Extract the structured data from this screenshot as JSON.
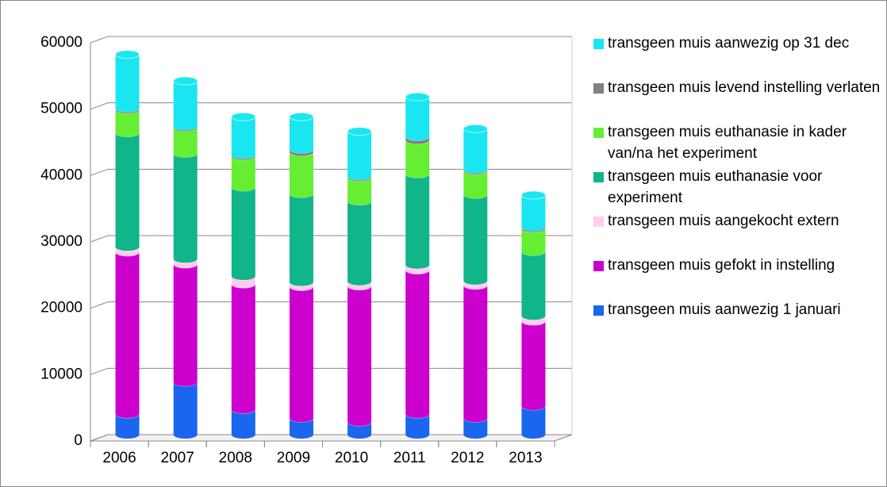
{
  "chart_data": {
    "type": "bar",
    "stacked": true,
    "categories": [
      "2006",
      "2007",
      "2008",
      "2009",
      "2010",
      "2011",
      "2012",
      "2013"
    ],
    "series": [
      {
        "name": "transgeen muis aanwezig 1 januari",
        "color": "#1a66ee",
        "values": [
          3100,
          7900,
          3800,
          2500,
          1900,
          3100,
          2500,
          4300
        ]
      },
      {
        "name": "transgeen muis gefokt in instelling",
        "color": "#cc00cc",
        "values": [
          24400,
          17800,
          18900,
          19800,
          20500,
          21700,
          20000,
          12800
        ]
      },
      {
        "name": "transgeen muis aangekocht extern",
        "color": "#ffccee",
        "values": [
          800,
          800,
          1200,
          700,
          700,
          800,
          700,
          800
        ]
      },
      {
        "name": "transgeen muis euthanasie voor experiment",
        "color": "#10b58a",
        "values": [
          17200,
          15900,
          13400,
          13300,
          12100,
          13700,
          13000,
          9700
        ]
      },
      {
        "name": "transgeen muis euthanasie in kader van/na het experiment",
        "color": "#66ee33",
        "values": [
          3500,
          3900,
          4700,
          6300,
          3600,
          5100,
          3600,
          3500
        ]
      },
      {
        "name": "transgeen muis levend instelling verlaten",
        "color": "#808080",
        "values": [
          200,
          200,
          200,
          400,
          200,
          500,
          200,
          200
        ]
      },
      {
        "name": "transgeen muis aanwezig op 31 dec",
        "color": "#19e6f0",
        "values": [
          8100,
          6800,
          5700,
          4900,
          6700,
          6000,
          6100,
          4800
        ]
      }
    ],
    "ylim": [
      0,
      60000
    ],
    "yticks": [
      0,
      10000,
      20000,
      30000,
      40000,
      50000,
      60000
    ],
    "grid": true,
    "legend": "right"
  }
}
